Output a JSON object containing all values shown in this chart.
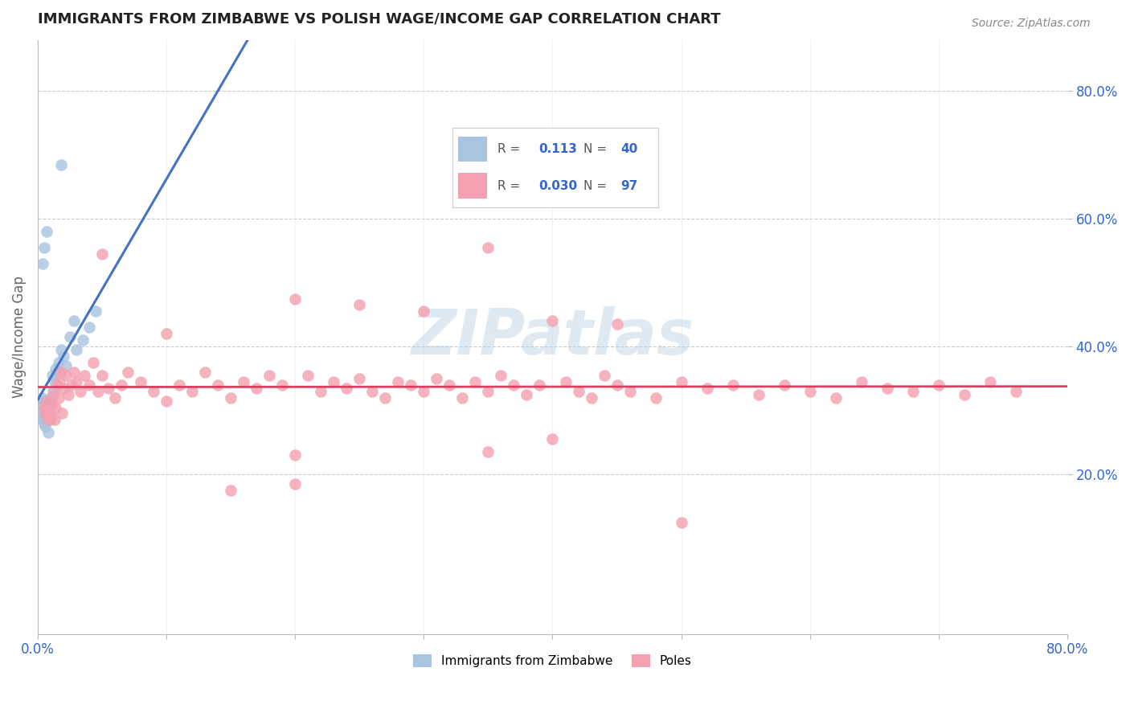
{
  "title": "IMMIGRANTS FROM ZIMBABWE VS POLISH WAGE/INCOME GAP CORRELATION CHART",
  "source": "Source: ZipAtlas.com",
  "ylabel": "Wage/Income Gap",
  "xlim": [
    0.0,
    0.8
  ],
  "ylim": [
    -0.05,
    0.88
  ],
  "xtick_pos": [
    0.0,
    0.1,
    0.2,
    0.3,
    0.4,
    0.5,
    0.6,
    0.7,
    0.8
  ],
  "xticklabels": [
    "0.0%",
    "",
    "",
    "",
    "",
    "",
    "",
    "",
    "80.0%"
  ],
  "ytick_pos": [
    0.2,
    0.4,
    0.6,
    0.8
  ],
  "ytick_labels": [
    "20.0%",
    "40.0%",
    "60.0%",
    "80.0%"
  ],
  "R_zimbabwe": 0.113,
  "N_zimbabwe": 40,
  "R_poles": 0.03,
  "N_poles": 97,
  "color_zimbabwe": "#a8c4e0",
  "color_poles": "#f4a0b0",
  "trendline_zimbabwe_color": "#4472c4",
  "trendline_poles_color": "#d94060",
  "trendline_dashed_color": "#a8c4e0",
  "watermark": "ZIPatlas",
  "legend_r1": "0.113",
  "legend_n1": "40",
  "legend_r2": "0.030",
  "legend_n2": "97"
}
